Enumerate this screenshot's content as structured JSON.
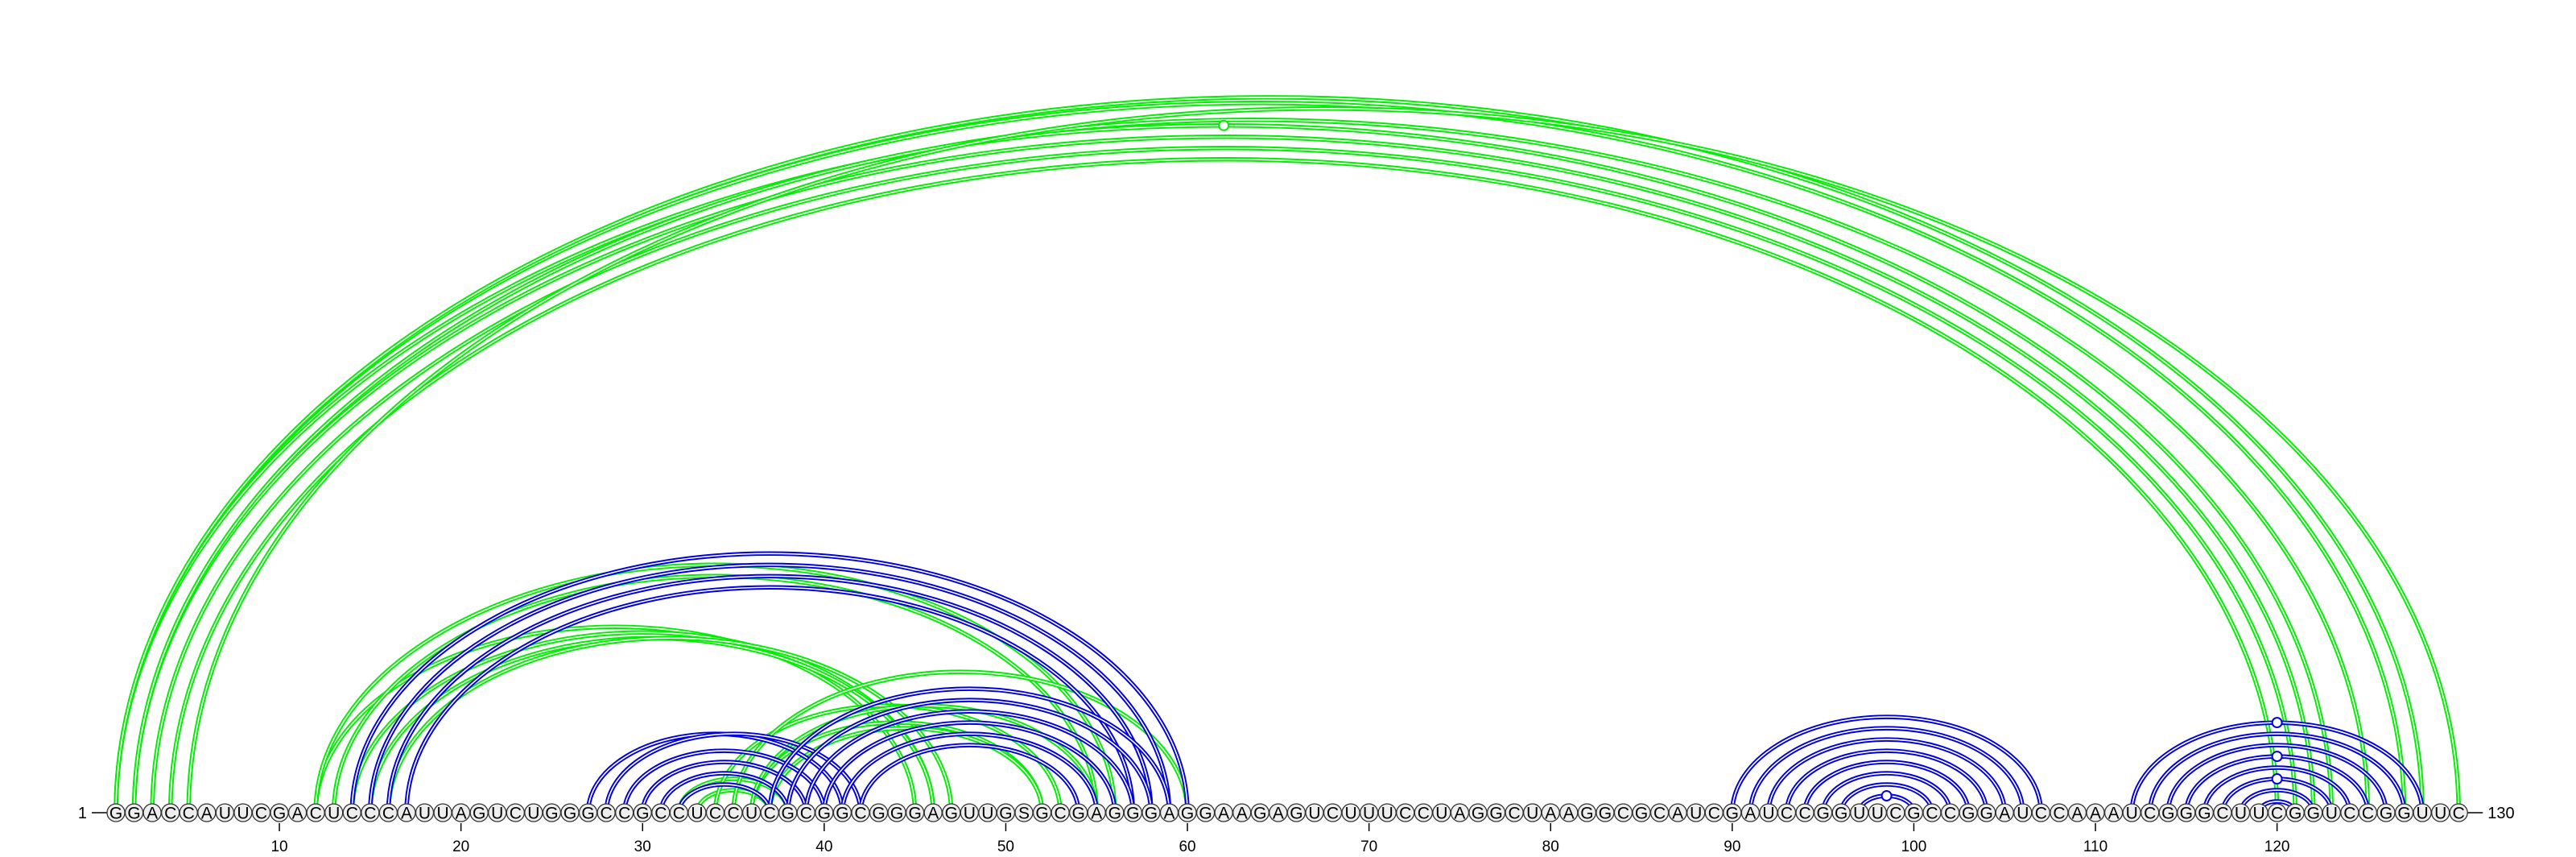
{
  "chart_data": {
    "type": "arc-diagram",
    "sequence": "GGACCAUUCGACUCCCAUUAGUCUGGGCCGCCUCCUCGCGGCGGGAGUUGSGCGAGGGAGGAAGAGUCUUUCCUAGGCUAAGGCGCAUCGAUCCGGUUCGCCGGAUCCAAAUCGGGCUUCGGUCCGGUUC",
    "start_label": "1",
    "end_label": "130",
    "ticks": [
      10,
      20,
      30,
      40,
      50,
      60,
      70,
      80,
      90,
      100,
      110,
      120
    ],
    "colors": {
      "green": "#00ee00",
      "blue": "#0000dd",
      "circle_fill": "#eeeeee",
      "circle_stroke": "#333333"
    },
    "arcs": {
      "green": [
        [
          1,
          123
        ],
        [
          1,
          127
        ],
        [
          1,
          128
        ],
        [
          2,
          122
        ],
        [
          2,
          125
        ],
        [
          3,
          121
        ],
        [
          4,
          120
        ],
        [
          5,
          130
        ],
        [
          12,
          45
        ],
        [
          12,
          56
        ],
        [
          13,
          55
        ],
        [
          14,
          46
        ],
        [
          15,
          46
        ],
        [
          16,
          47
        ],
        [
          32,
          38
        ],
        [
          33,
          37
        ],
        [
          34,
          53
        ],
        [
          35,
          60
        ],
        [
          36,
          52
        ],
        [
          36,
          55
        ],
        [
          37,
          52
        ]
      ],
      "blue": [
        [
          14,
          60
        ],
        [
          15,
          59
        ],
        [
          16,
          58
        ],
        [
          17,
          57
        ],
        [
          27,
          41
        ],
        [
          28,
          42
        ],
        [
          29,
          40
        ],
        [
          30,
          39
        ],
        [
          31,
          38
        ],
        [
          32,
          37
        ],
        [
          37,
          59
        ],
        [
          38,
          58
        ],
        [
          39,
          57
        ],
        [
          40,
          56
        ],
        [
          41,
          55
        ],
        [
          42,
          54
        ],
        [
          90,
          107
        ],
        [
          91,
          106
        ],
        [
          92,
          105
        ],
        [
          93,
          104
        ],
        [
          94,
          103
        ],
        [
          95,
          102
        ],
        [
          96,
          101
        ],
        [
          97,
          100
        ],
        [
          112,
          128
        ],
        [
          113,
          127
        ],
        [
          114,
          126
        ],
        [
          115,
          125
        ],
        [
          116,
          124
        ],
        [
          117,
          123
        ],
        [
          118,
          122
        ],
        [
          119,
          121
        ]
      ]
    },
    "markers": [
      {
        "i": 1,
        "j": 123,
        "color": "green"
      },
      {
        "i": 97,
        "j": 100,
        "color": "blue"
      },
      {
        "i": 112,
        "j": 128,
        "color": "blue"
      },
      {
        "i": 115,
        "j": 125,
        "color": "blue"
      },
      {
        "i": 117,
        "j": 123,
        "color": "blue"
      }
    ]
  }
}
